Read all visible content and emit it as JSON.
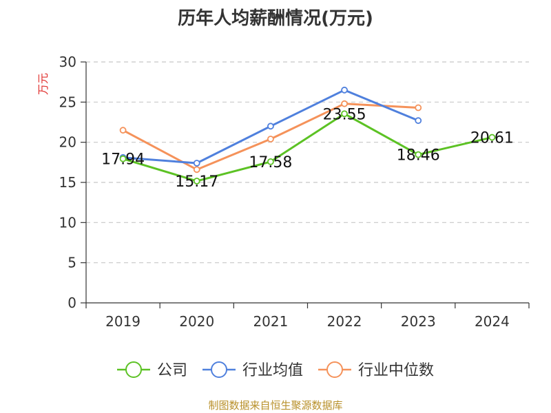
{
  "source_note": "制图数据来自恒生聚源数据库",
  "chart_data": {
    "type": "line",
    "title": "历年人均薪酬情况(万元)",
    "xlabel": "",
    "ylabel": "万元",
    "categories": [
      "2019",
      "2020",
      "2021",
      "2022",
      "2023",
      "2024"
    ],
    "ylim": [
      0,
      30
    ],
    "yticks": [
      0,
      5,
      10,
      15,
      20,
      25,
      30
    ],
    "grid": true,
    "legend_position": "bottom",
    "series": [
      {
        "name": "公司",
        "color": "#5cc224",
        "values": [
          17.94,
          15.17,
          17.58,
          23.55,
          18.46,
          20.61
        ],
        "labels": [
          "17.94",
          "15.17",
          "17.58",
          "23.55",
          "18.46",
          "20.61"
        ]
      },
      {
        "name": "行业均值",
        "color": "#4f80dd",
        "values": [
          18.1,
          17.4,
          22.0,
          26.5,
          22.7,
          null
        ]
      },
      {
        "name": "行业中位数",
        "color": "#f5925a",
        "values": [
          21.5,
          16.6,
          20.4,
          24.8,
          24.3,
          null
        ]
      }
    ]
  }
}
